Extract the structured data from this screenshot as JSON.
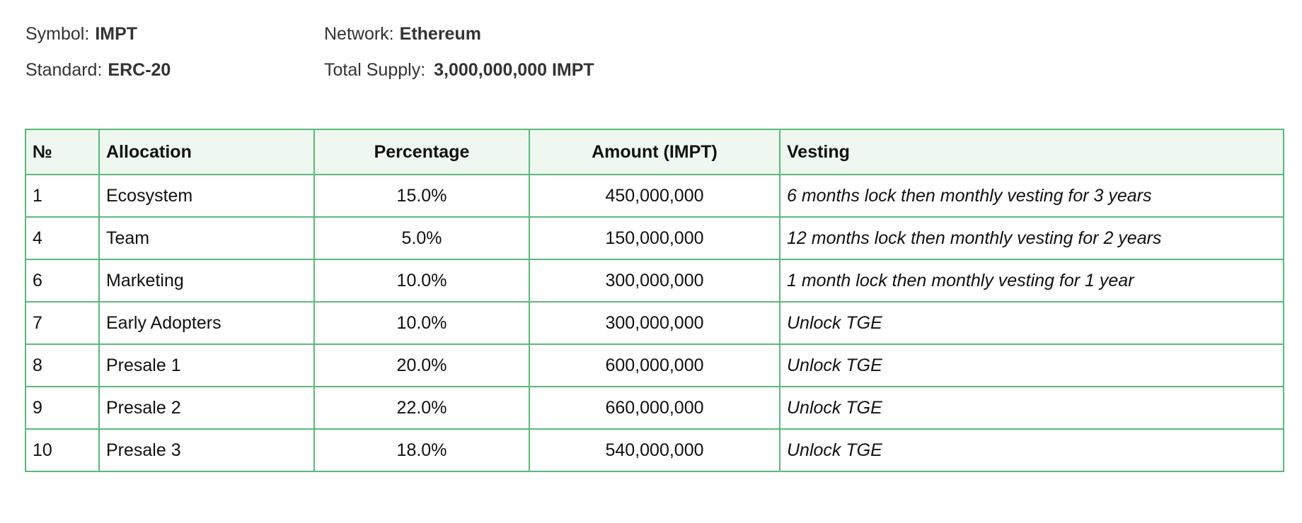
{
  "token_info": {
    "symbol_label": "Symbol:",
    "symbol_value": "IMPT",
    "network_label": "Network:",
    "network_value": "Ethereum",
    "standard_label": "Standard:",
    "standard_value": "ERC-20",
    "supply_label": "Total Supply:",
    "supply_value": "3,000,000,000 IMPT"
  },
  "table": {
    "headers": {
      "no": "№",
      "allocation": "Allocation",
      "percentage": "Percentage",
      "amount": "Amount (IMPT)",
      "vesting": "Vesting"
    },
    "rows": [
      {
        "no": "1",
        "allocation": "Ecosystem",
        "percentage": "15.0%",
        "amount": "450,000,000",
        "vesting": "6 months lock then monthly vesting for 3 years"
      },
      {
        "no": "4",
        "allocation": "Team",
        "percentage": "5.0%",
        "amount": "150,000,000",
        "vesting": "12 months lock then monthly vesting for 2 years"
      },
      {
        "no": "6",
        "allocation": "Marketing",
        "percentage": "10.0%",
        "amount": "300,000,000",
        "vesting": "1 month lock then monthly vesting for 1 year"
      },
      {
        "no": "7",
        "allocation": "Early Adopters",
        "percentage": "10.0%",
        "amount": "300,000,000",
        "vesting": "Unlock TGE"
      },
      {
        "no": "8",
        "allocation": "Presale 1",
        "percentage": "20.0%",
        "amount": "600,000,000",
        "vesting": "Unlock TGE"
      },
      {
        "no": "9",
        "allocation": "Presale 2",
        "percentage": "22.0%",
        "amount": "660,000,000",
        "vesting": "Unlock TGE"
      },
      {
        "no": "10",
        "allocation": "Presale 3",
        "percentage": "18.0%",
        "amount": "540,000,000",
        "vesting": "Unlock TGE"
      }
    ]
  },
  "colors": {
    "border": "#5cb87a",
    "header_background": "#eef8f1",
    "text": "#111111",
    "meta_text": "#333333"
  }
}
